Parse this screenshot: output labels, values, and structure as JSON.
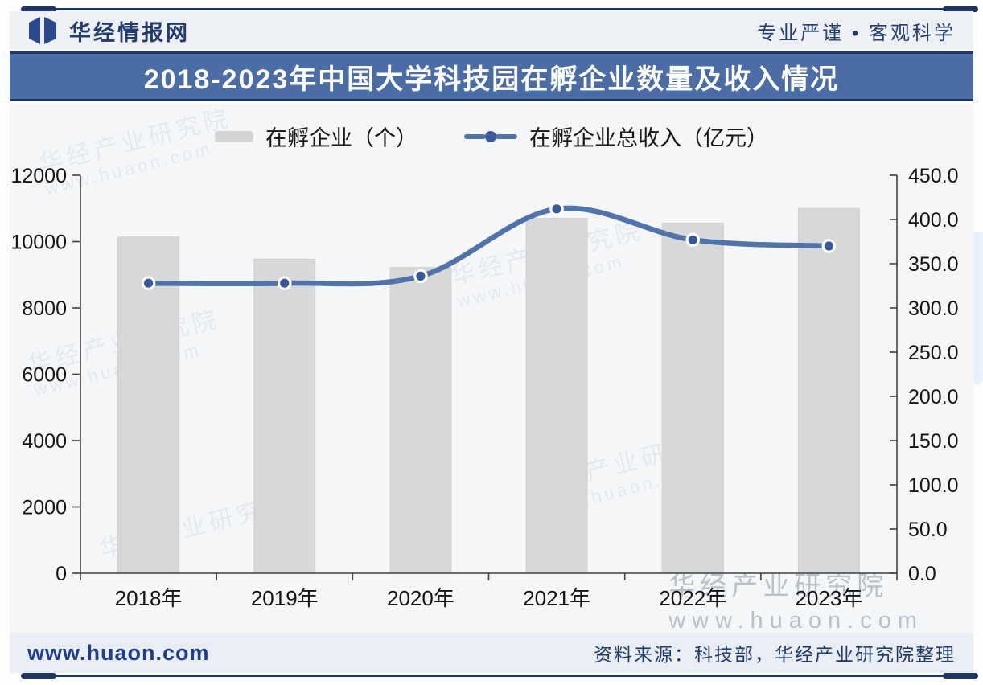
{
  "header": {
    "brand": "华经情报网",
    "tagline": "专业严谨 • 客观科学"
  },
  "title": "2018-2023年中国大学科技园在孵企业数量及收入情况",
  "chart_data": {
    "type": "bar+line",
    "title": "2018-2023年中国大学科技园在孵企业数量及收入情况",
    "categories": [
      "2018年",
      "2019年",
      "2020年",
      "2021年",
      "2022年",
      "2023年"
    ],
    "series": [
      {
        "name": "在孵企业（个）",
        "type": "bar",
        "axis": "left",
        "values": [
          10140,
          9470,
          9220,
          10700,
          10560,
          11000
        ]
      },
      {
        "name": "在孵企业总收入（亿元）",
        "type": "line",
        "axis": "right",
        "values": [
          328,
          328,
          336,
          412,
          377,
          370
        ]
      }
    ],
    "left_axis": {
      "min": 0,
      "max": 12000,
      "step": 2000,
      "ticks": [
        "0",
        "2000",
        "4000",
        "6000",
        "8000",
        "10000",
        "12000"
      ]
    },
    "right_axis": {
      "min": 0,
      "max": 450,
      "step": 50,
      "ticks": [
        "0.0",
        "50.0",
        "100.0",
        "150.0",
        "200.0",
        "250.0",
        "300.0",
        "350.0",
        "400.0",
        "450.0"
      ]
    },
    "grid": false,
    "legend_position": "top"
  },
  "footer": {
    "site": "www.huaon.com",
    "source": "资料来源：科技部，华经产业研究院整理"
  },
  "watermark": {
    "text": "华经产业研究院",
    "url": "www.huaon.com"
  },
  "colors": {
    "accent_navy": "#1d3765",
    "banner_bg": "#4a6da6",
    "bar_fill": "#d8d8d9",
    "bar_edge": "#cfcfd1",
    "line": "#4f74a9",
    "dot_fill": "#35589b",
    "axis": "#3f3f3f",
    "axis_text": "#141414"
  }
}
